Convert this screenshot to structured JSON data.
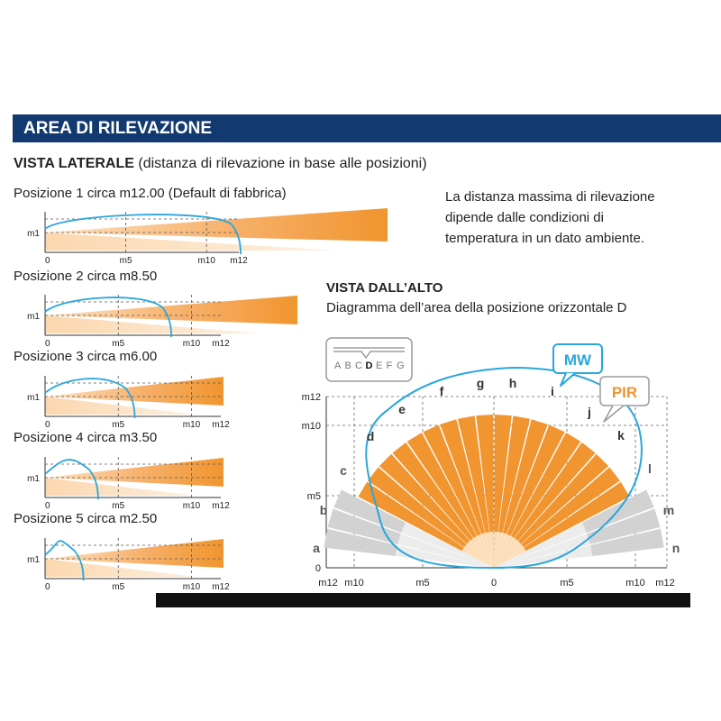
{
  "header": {
    "title": "AREA DI RILEVAZIONE"
  },
  "side_view": {
    "title": "VISTA LATERALE",
    "subtitle": "(distanza di rilevazione in base alle posizioni)",
    "positions": [
      {
        "label": "Posizione 1 circa m12.00 (Default di fabbrica)",
        "range_m": 12.0
      },
      {
        "label": "Posizione 2 circa m8.50",
        "range_m": 8.5
      },
      {
        "label": "Posizione 3 circa m6.00",
        "range_m": 6.0
      },
      {
        "label": "Posizione 4 circa m3.50",
        "range_m": 3.5
      },
      {
        "label": "Posizione 5 circa m2.50",
        "range_m": 2.5
      }
    ],
    "y_label": "m1",
    "x_ticks": [
      "0",
      "m5",
      "m10",
      "m12"
    ]
  },
  "note": {
    "text": "La distanza massima di rilevazione dipende dalle condizioni di temperatura in un dato ambiente."
  },
  "top_view": {
    "title": "VISTA DALL’ALTO",
    "description": "Diagramma dell’area della posizione orizzontale D",
    "selector_letters": [
      "A",
      "B",
      "C",
      "D",
      "E",
      "F",
      "G"
    ],
    "selected_letter": "D",
    "legend": {
      "mw": "MW",
      "pir": "PIR"
    },
    "y_ticks": [
      "m12",
      "m10",
      "m5",
      "0"
    ],
    "x_ticks": [
      "m12",
      "m10",
      "m5",
      "0",
      "m5",
      "m10",
      "m12"
    ],
    "beam_letters": [
      "a",
      "b",
      "c",
      "d",
      "e",
      "f",
      "g",
      "h",
      "i",
      "j",
      "k",
      "l",
      "m",
      "n"
    ],
    "active_beams": [
      "d",
      "e",
      "f",
      "g",
      "h",
      "i",
      "j",
      "k"
    ],
    "colors": {
      "pir": "#f0952f",
      "mw": "#2aa6dc",
      "inactive": "#cfcfcf",
      "header": "#133a70"
    }
  }
}
